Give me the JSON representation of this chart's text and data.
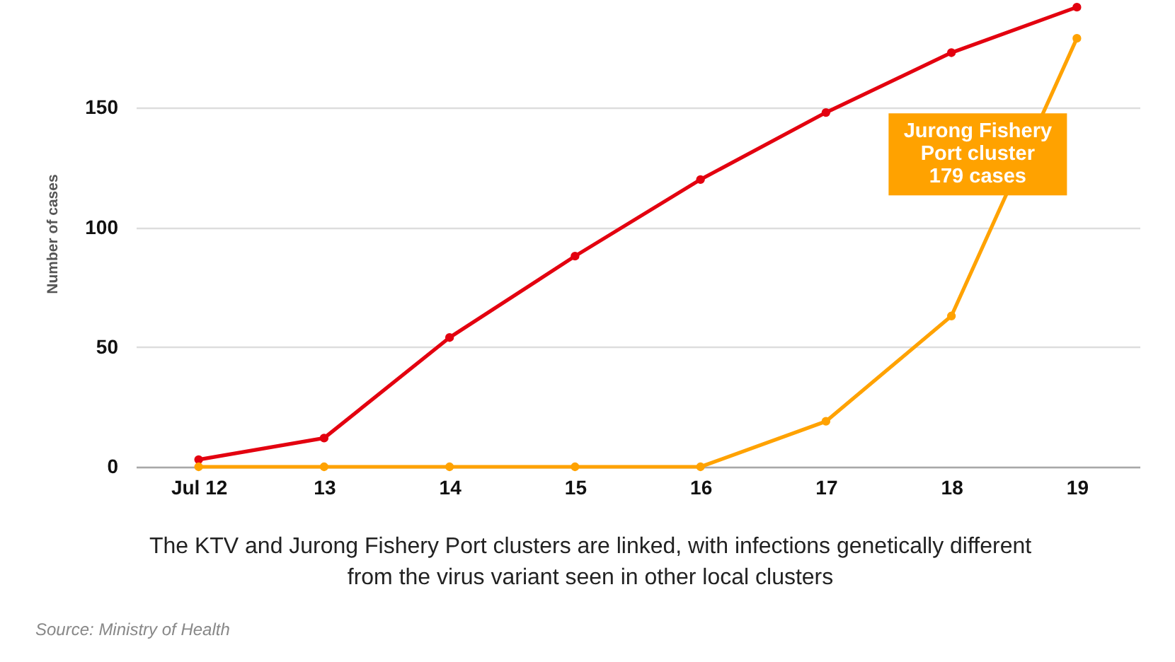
{
  "chart_data": {
    "type": "line",
    "categories": [
      "Jul 12",
      "13",
      "14",
      "15",
      "16",
      "17",
      "18",
      "19"
    ],
    "series": [
      {
        "color": "#e3000f",
        "values": [
          3,
          12,
          54,
          88,
          120,
          148,
          173,
          192
        ]
      },
      {
        "name": "Jurong Fishery Port cluster",
        "color": "#ffa200",
        "values": [
          0,
          0,
          0,
          0,
          0,
          19,
          63,
          179
        ]
      }
    ],
    "ylabel": "Number of cases",
    "ylim": [
      0,
      195
    ],
    "yticks": [
      0,
      50,
      100,
      150
    ],
    "grid": "y",
    "marker": "circle",
    "annotations": [
      "179 cases",
      "The KTV and Jurong Fishery Port clusters are linked, with infections genetically different\nfrom the virus variant seen in other local clusters",
      "Source: Ministry of Health"
    ]
  }
}
